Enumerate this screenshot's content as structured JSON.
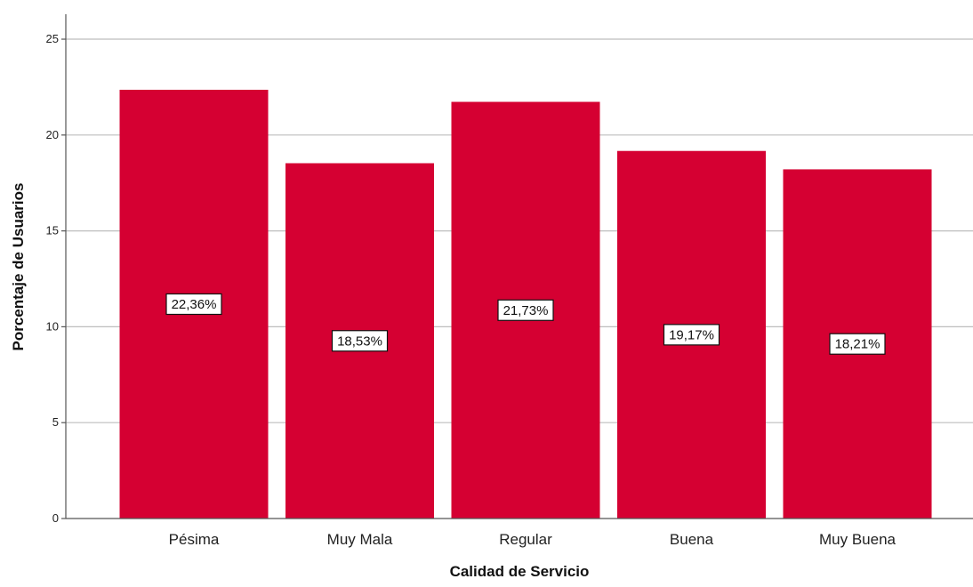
{
  "chart_data": {
    "type": "bar",
    "categories": [
      "Pésima",
      "Muy Mala",
      "Regular",
      "Buena",
      "Muy Buena"
    ],
    "values": [
      22.36,
      18.53,
      21.73,
      19.17,
      18.21
    ],
    "data_labels": [
      "22,36%",
      "18,53%",
      "21,73%",
      "19,17%",
      "18,21%"
    ],
    "xlabel": "Calidad de Servicio",
    "ylabel": "Porcentaje de Usuarios",
    "ylim": [
      0,
      26.3
    ],
    "yticks": [
      0,
      5,
      10,
      15,
      20,
      25
    ],
    "grid": true,
    "legend": "none",
    "colors": {
      "bar": "#D50032",
      "grid": "#BEBEBE",
      "axis": "#555555"
    }
  }
}
